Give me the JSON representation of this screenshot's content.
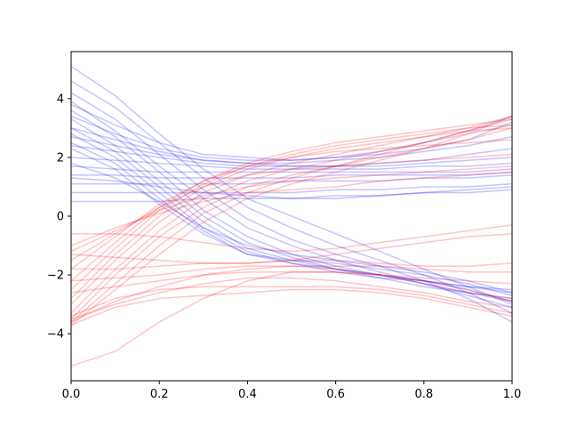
{
  "chart_data": {
    "type": "line",
    "title": "",
    "xlabel": "",
    "ylabel": "",
    "xlim": [
      0,
      1
    ],
    "ylim": [
      -5.6,
      5.6
    ],
    "xticks": [
      {
        "value": 0.0,
        "label": "0.0"
      },
      {
        "value": 0.2,
        "label": "0.2"
      },
      {
        "value": 0.4,
        "label": "0.4"
      },
      {
        "value": 0.6,
        "label": "0.6"
      },
      {
        "value": 0.8,
        "label": "0.8"
      },
      {
        "value": 1.0,
        "label": "1.0"
      }
    ],
    "yticks": [
      {
        "value": -4,
        "label": "−4"
      },
      {
        "value": -2,
        "label": "−2"
      },
      {
        "value": 0,
        "label": "0"
      },
      {
        "value": 2,
        "label": "2"
      },
      {
        "value": 4,
        "label": "4"
      }
    ],
    "grid": false,
    "legend": "none",
    "line_opacity": 0.22,
    "x": [
      0,
      0.1,
      0.2,
      0.3,
      0.4,
      0.5,
      0.6,
      0.7,
      0.8,
      0.9,
      1.0
    ],
    "series": [
      {
        "color": "#0000ff",
        "values": [
          5.1,
          4.1,
          2.8,
          1.6,
          0.6,
          0.0,
          -0.6,
          -1.2,
          -1.8,
          -2.4,
          -3.0
        ]
      },
      {
        "color": "#0000ff",
        "values": [
          4.6,
          3.7,
          2.5,
          1.3,
          0.3,
          -0.4,
          -1.0,
          -1.5,
          -2.0,
          -2.6,
          -3.3
        ]
      },
      {
        "color": "#0000ff",
        "values": [
          4.2,
          3.3,
          2.1,
          0.9,
          -0.1,
          -0.8,
          -1.3,
          -1.7,
          -2.2,
          -2.8,
          -3.6
        ]
      },
      {
        "color": "#0000ff",
        "values": [
          3.9,
          2.9,
          1.7,
          0.6,
          -0.4,
          -1.0,
          -1.5,
          -1.9,
          -2.3,
          -2.7,
          -3.1
        ]
      },
      {
        "color": "#0000ff",
        "values": [
          3.6,
          2.7,
          1.5,
          0.2,
          -0.7,
          -1.3,
          -1.7,
          -2.0,
          -2.3,
          -2.6,
          -2.9
        ]
      },
      {
        "color": "#0000ff",
        "values": [
          3.3,
          2.4,
          1.2,
          0.0,
          -0.9,
          -1.4,
          -1.8,
          -2.1,
          -2.4,
          -2.6,
          -2.8
        ]
      },
      {
        "color": "#0000ff",
        "values": [
          3.0,
          2.2,
          1.0,
          -0.2,
          -1.1,
          -1.5,
          -1.8,
          -2.0,
          -2.2,
          -2.4,
          -2.5
        ]
      },
      {
        "color": "#0000ff",
        "values": [
          2.8,
          2.0,
          0.8,
          -0.4,
          -1.2,
          -1.6,
          -1.9,
          -2.1,
          -2.2,
          -2.4,
          -2.6
        ]
      },
      {
        "color": "#0000ff",
        "values": [
          2.5,
          1.8,
          0.6,
          -0.5,
          -1.3,
          -1.6,
          -1.8,
          -2.0,
          -2.2,
          -2.5,
          -2.9
        ]
      },
      {
        "color": "#0000ff",
        "values": [
          2.3,
          1.6,
          0.4,
          -0.6,
          -1.3,
          -1.5,
          -1.6,
          -1.8,
          -2.0,
          -2.3,
          -2.7
        ]
      },
      {
        "color": "#0000ff",
        "values": [
          1.8,
          1.3,
          0.5,
          -0.4,
          -1.0,
          -1.3,
          -1.5,
          -1.7,
          -1.9,
          -2.2,
          -2.6
        ]
      },
      {
        "color": "#0000ff",
        "values": [
          3.8,
          3.1,
          2.5,
          2.1,
          2.0,
          1.9,
          2.0,
          2.1,
          2.3,
          2.6,
          3.2
        ]
      },
      {
        "color": "#0000ff",
        "values": [
          3.4,
          2.8,
          2.3,
          2.0,
          1.9,
          1.9,
          2.0,
          2.2,
          2.5,
          2.9,
          3.4
        ]
      },
      {
        "color": "#0000ff",
        "values": [
          3.0,
          2.6,
          2.2,
          1.9,
          1.8,
          1.8,
          1.9,
          2.0,
          2.2,
          2.4,
          2.7
        ]
      },
      {
        "color": "#0000ff",
        "values": [
          2.7,
          2.4,
          2.1,
          1.9,
          1.8,
          1.7,
          1.7,
          1.8,
          1.9,
          2.1,
          2.3
        ]
      },
      {
        "color": "#0000ff",
        "values": [
          2.4,
          2.2,
          2.0,
          1.8,
          1.7,
          1.7,
          1.7,
          1.7,
          1.8,
          1.9,
          2.0
        ]
      },
      {
        "color": "#0000ff",
        "values": [
          2.0,
          1.9,
          1.8,
          1.7,
          1.6,
          1.6,
          1.6,
          1.6,
          1.7,
          1.7,
          1.8
        ]
      },
      {
        "color": "#0000ff",
        "values": [
          1.7,
          1.6,
          1.5,
          1.5,
          1.5,
          1.5,
          1.5,
          1.5,
          1.5,
          1.5,
          1.6
        ]
      },
      {
        "color": "#0000ff",
        "values": [
          1.4,
          1.4,
          1.3,
          1.3,
          1.3,
          1.3,
          1.4,
          1.4,
          1.4,
          1.4,
          1.5
        ]
      },
      {
        "color": "#0000ff",
        "values": [
          1.1,
          1.1,
          1.1,
          1.1,
          1.1,
          1.2,
          1.2,
          1.2,
          1.3,
          1.3,
          1.4
        ]
      },
      {
        "color": "#0000ff",
        "values": [
          0.8,
          0.8,
          0.8,
          0.8,
          0.8,
          0.8,
          0.9,
          0.9,
          1.0,
          1.0,
          1.1
        ]
      },
      {
        "color": "#0000ff",
        "values": [
          0.5,
          0.5,
          0.5,
          0.6,
          0.6,
          0.6,
          0.7,
          0.7,
          0.8,
          0.8,
          0.9
        ]
      },
      {
        "color": "#0000ff",
        "values": [
          1.3,
          1.2,
          1.0,
          0.8,
          0.7,
          0.6,
          0.6,
          0.7,
          0.8,
          0.9,
          1.0
        ]
      },
      {
        "color": "#ff0000",
        "values": [
          -3.7,
          -2.5,
          -1.3,
          -0.2,
          0.6,
          1.1,
          1.5,
          1.9,
          2.3,
          2.8,
          3.4
        ]
      },
      {
        "color": "#ff0000",
        "values": [
          -3.6,
          -2.3,
          -1.0,
          0.1,
          0.8,
          1.3,
          1.7,
          2.1,
          2.5,
          2.9,
          3.3
        ]
      },
      {
        "color": "#ff0000",
        "values": [
          -3.5,
          -2.0,
          -0.7,
          0.3,
          1.0,
          1.4,
          1.7,
          2.0,
          2.3,
          2.6,
          3.0
        ]
      },
      {
        "color": "#ff0000",
        "values": [
          -3.3,
          -1.8,
          -0.5,
          0.6,
          1.2,
          1.6,
          1.9,
          2.2,
          2.5,
          2.8,
          3.1
        ]
      },
      {
        "color": "#ff0000",
        "values": [
          -3.0,
          -1.5,
          -0.2,
          0.8,
          1.4,
          1.8,
          2.1,
          2.4,
          2.7,
          3.0,
          3.4
        ]
      },
      {
        "color": "#ff0000",
        "values": [
          -2.8,
          -1.3,
          0.0,
          1.0,
          1.6,
          2.0,
          2.3,
          2.5,
          2.7,
          2.9,
          3.0
        ]
      },
      {
        "color": "#ff0000",
        "values": [
          -2.5,
          -1.1,
          0.2,
          1.1,
          1.7,
          2.1,
          2.4,
          2.6,
          2.8,
          3.0,
          3.1
        ]
      },
      {
        "color": "#ff0000",
        "values": [
          -2.2,
          -0.9,
          0.3,
          1.2,
          1.8,
          2.2,
          2.5,
          2.7,
          2.9,
          3.1,
          3.3
        ]
      },
      {
        "color": "#ff0000",
        "values": [
          -1.8,
          -0.7,
          0.4,
          1.2,
          1.7,
          2.0,
          2.2,
          2.3,
          2.4,
          2.5,
          2.6
        ]
      },
      {
        "color": "#ff0000",
        "values": [
          -1.5,
          -0.6,
          0.3,
          1.0,
          1.4,
          1.6,
          1.7,
          1.8,
          1.9,
          2.0,
          2.1
        ]
      },
      {
        "color": "#ff0000",
        "values": [
          -1.2,
          -0.5,
          0.2,
          0.7,
          1.0,
          1.2,
          1.3,
          1.4,
          1.5,
          1.6,
          1.7
        ]
      },
      {
        "color": "#ff0000",
        "values": [
          -1.0,
          -0.4,
          0.1,
          0.5,
          0.8,
          0.9,
          1.0,
          1.2,
          1.3,
          1.4,
          1.5
        ]
      },
      {
        "color": "#ff0000",
        "values": [
          -0.6,
          -0.6,
          -0.7,
          -0.9,
          -1.1,
          -1.2,
          -1.1,
          -0.9,
          -0.7,
          -0.5,
          -0.3
        ]
      },
      {
        "color": "#ff0000",
        "values": [
          -1.3,
          -1.4,
          -1.5,
          -1.6,
          -1.6,
          -1.5,
          -1.3,
          -1.1,
          -0.9,
          -0.7,
          -0.6
        ]
      },
      {
        "color": "#ff0000",
        "values": [
          -1.8,
          -1.8,
          -1.7,
          -1.6,
          -1.6,
          -1.5,
          -1.5,
          -1.6,
          -1.7,
          -1.7,
          -1.6
        ]
      },
      {
        "color": "#ff0000",
        "values": [
          -2.2,
          -2.1,
          -2.0,
          -1.8,
          -1.7,
          -1.7,
          -1.7,
          -1.7,
          -1.8,
          -1.9,
          -1.9
        ]
      },
      {
        "color": "#ff0000",
        "values": [
          -2.6,
          -2.4,
          -2.2,
          -2.0,
          -1.9,
          -1.9,
          -1.9,
          -2.0,
          -2.1,
          -2.2,
          -2.3
        ]
      },
      {
        "color": "#ff0000",
        "values": [
          -3.6,
          -2.9,
          -2.4,
          -2.0,
          -1.8,
          -1.7,
          -1.8,
          -2.0,
          -2.3,
          -2.6,
          -2.8
        ]
      },
      {
        "color": "#ff0000",
        "values": [
          -3.5,
          -3.0,
          -2.6,
          -2.3,
          -2.1,
          -2.1,
          -2.2,
          -2.4,
          -2.6,
          -2.9,
          -3.1
        ]
      },
      {
        "color": "#ff0000",
        "values": [
          -3.4,
          -2.8,
          -2.5,
          -2.4,
          -2.4,
          -2.4,
          -2.4,
          -2.5,
          -2.7,
          -3.0,
          -3.3
        ]
      },
      {
        "color": "#ff0000",
        "values": [
          -5.1,
          -4.6,
          -3.6,
          -2.8,
          -2.2,
          -1.9,
          -1.9,
          -2.0,
          -2.2,
          -2.5,
          -2.9
        ]
      },
      {
        "color": "#ff0000",
        "values": [
          -3.7,
          -3.1,
          -2.8,
          -2.7,
          -2.6,
          -2.5,
          -2.5,
          -2.6,
          -2.8,
          -3.1,
          -3.4
        ]
      }
    ]
  }
}
